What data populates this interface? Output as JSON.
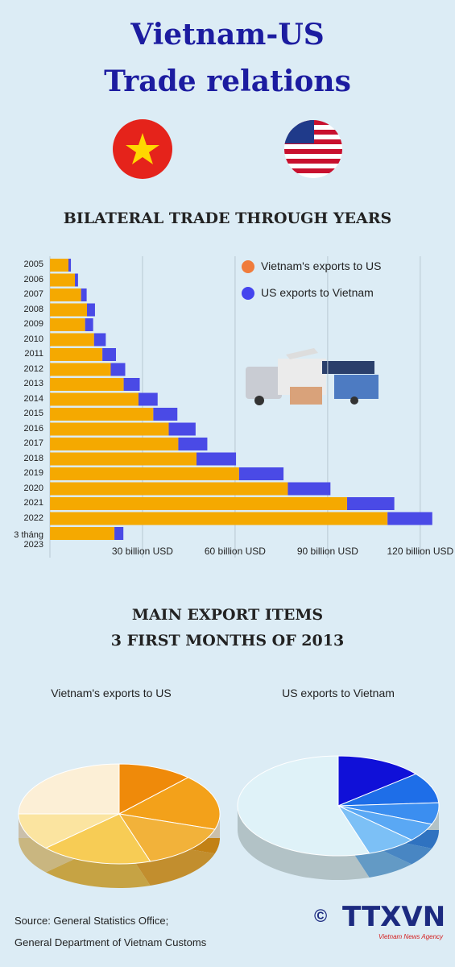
{
  "header": {
    "title": [
      "Vietnam-US",
      "Trade relations"
    ]
  },
  "chart_data": [
    {
      "type": "bar",
      "orientation": "horizontal",
      "stacked": true,
      "title": "BILATERAL TRADE THROUGH YEARS",
      "categories": [
        "2005",
        "2006",
        "2007",
        "2008",
        "2009",
        "2010",
        "2011",
        "2012",
        "2013",
        "2014",
        "2015",
        "2016",
        "2017",
        "2018",
        "2019",
        "2020",
        "2021",
        "2022",
        "3 tháng\n2023"
      ],
      "series": [
        {
          "name": "Vietnam's exports to US",
          "color": "#f5a900",
          "legend_color": "#f07c3c",
          "values": [
            6.0,
            8.1,
            10.1,
            12.0,
            11.4,
            14.3,
            17.0,
            19.7,
            23.9,
            28.7,
            33.5,
            38.5,
            41.6,
            47.5,
            61.3,
            77.1,
            96.3,
            109.4,
            20.9
          ]
        },
        {
          "name": "US exports to Vietnam",
          "color": "#4a4ae6",
          "legend_color": "#4444ee",
          "values": [
            0.8,
            1.0,
            1.8,
            2.6,
            2.6,
            3.8,
            4.4,
            4.7,
            5.2,
            6.2,
            7.8,
            8.7,
            9.4,
            12.8,
            14.4,
            13.8,
            15.3,
            14.5,
            2.9
          ]
        }
      ],
      "xlim": [
        0,
        125
      ],
      "xticks": [
        {
          "value": 30,
          "label": "30 billion USD"
        },
        {
          "value": 60,
          "label": "60 billion USD"
        },
        {
          "value": 90,
          "label": "90 billion USD"
        },
        {
          "value": 120,
          "label": "120 billion USD"
        }
      ],
      "grid": true,
      "legend": "top-right"
    },
    {
      "type": "pie",
      "title": "Vietnam's exports to US",
      "values": [
        12,
        18,
        15,
        18,
        12,
        25
      ],
      "colors": [
        "#ef8a0a",
        "#f3a11a",
        "#f2b23a",
        "#f7cc55",
        "#fbe4a0",
        "#fcefd6"
      ]
    },
    {
      "type": "pie",
      "title": "US exports to Vietnam",
      "values": [
        14,
        10,
        7,
        6,
        8,
        55
      ],
      "colors": [
        "#1010d8",
        "#1e6ee8",
        "#3b8ef0",
        "#5aa8f4",
        "#7cc0f6",
        "#dff2f8"
      ]
    }
  ],
  "pie_section": {
    "title": [
      "MAIN EXPORT ITEMS",
      "3 FIRST MONTHS OF 2013"
    ]
  },
  "footer": {
    "source": [
      "Source: General Statistics Office;",
      "General Department of Vietnam Customs"
    ],
    "copyright": "©",
    "logo": "TTXVN",
    "logo_subtitle": "Vietnam News Agency"
  }
}
